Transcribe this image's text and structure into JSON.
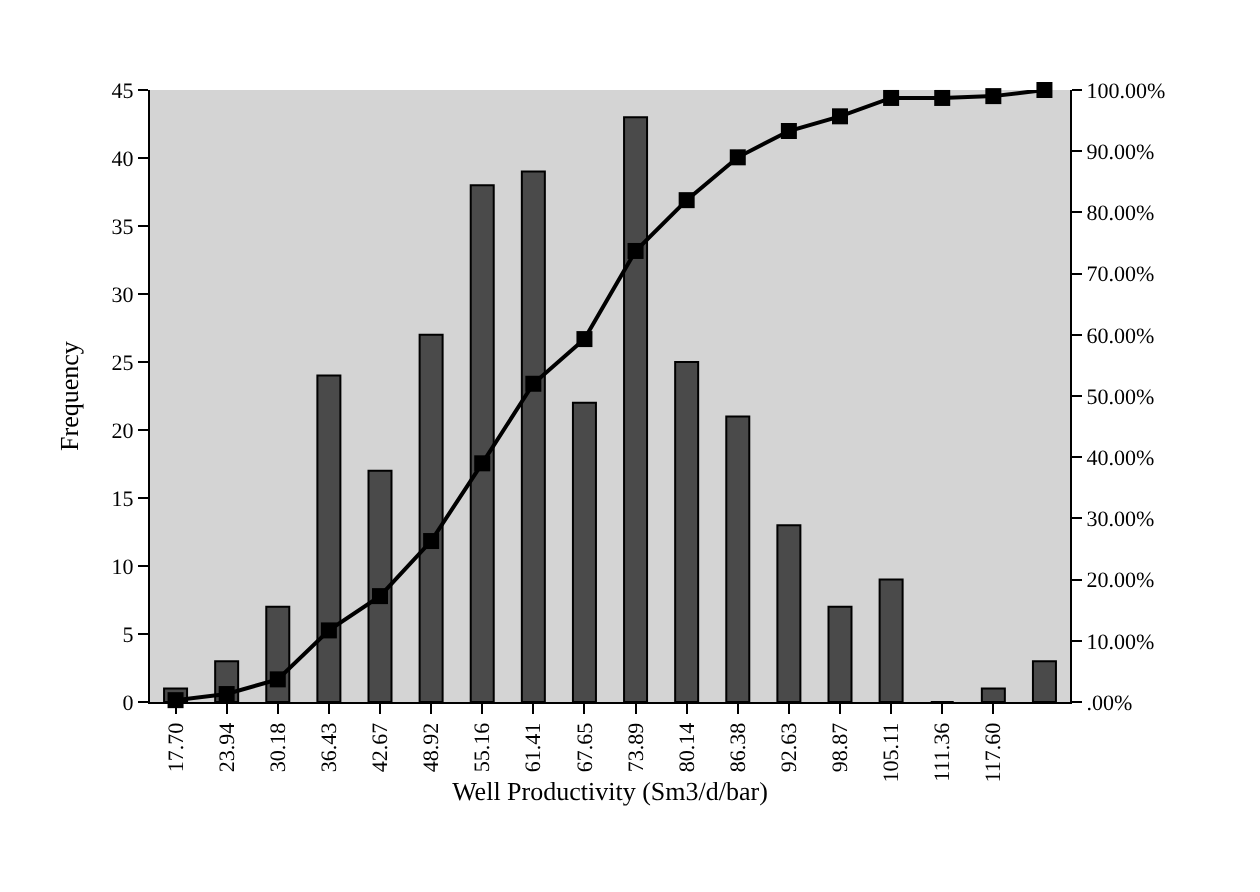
{
  "chart_data": {
    "type": "bar",
    "xlabel": "Well Productivity (Sm3/d/bar)",
    "ylabel": "Frequency",
    "categories": [
      "17.70",
      "23.94",
      "30.18",
      "36.43",
      "42.67",
      "48.92",
      "55.16",
      "61.41",
      "67.65",
      "73.89",
      "80.14",
      "86.38",
      "92.63",
      "98.87",
      "105.11",
      "111.36",
      "117.60",
      null
    ],
    "series": [
      {
        "color": "#4a4a4a",
        "values": [
          1,
          3,
          7,
          24,
          17,
          27,
          38,
          39,
          22,
          43,
          25,
          21,
          13,
          7,
          9,
          0,
          1,
          3
        ]
      },
      {
        "type": "line",
        "axis": "y2",
        "color": "#000000",
        "marker": "square",
        "line_style": "solid",
        "values": [
          0.3,
          1.3,
          3.7,
          11.7,
          17.3,
          26.3,
          39.0,
          52.0,
          59.3,
          73.7,
          82.0,
          89.0,
          93.3,
          95.7,
          98.7,
          98.7,
          99.0,
          100.0
        ]
      }
    ],
    "ylim": [
      0,
      45
    ],
    "yticks": [
      0,
      5,
      10,
      15,
      20,
      25,
      30,
      35,
      40,
      45
    ],
    "y2lim": [
      0,
      100
    ],
    "y2ticks": [
      {
        "value": 0,
        "label": ".00%"
      },
      {
        "value": 10,
        "label": "10.00%"
      },
      {
        "value": 20,
        "label": "20.00%"
      },
      {
        "value": 30,
        "label": "30.00%"
      },
      {
        "value": 40,
        "label": "40.00%"
      },
      {
        "value": 50,
        "label": "50.00%"
      },
      {
        "value": 60,
        "label": "60.00%"
      },
      {
        "value": 70,
        "label": "70.00%"
      },
      {
        "value": 80,
        "label": "80.00%"
      },
      {
        "value": 90,
        "label": "90.00%"
      },
      {
        "value": 100,
        "label": "100.00%"
      }
    ],
    "grid": false,
    "legend": false
  }
}
